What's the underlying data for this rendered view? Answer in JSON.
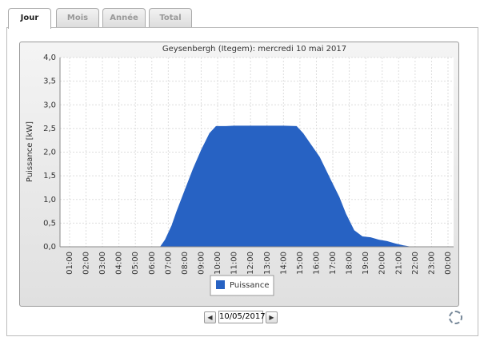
{
  "tabs": [
    "Jour",
    "Mois",
    "Année",
    "Total"
  ],
  "date": "10/05/2017",
  "chart_data": {
    "type": "area",
    "title": "Geysenbergh (Itegem): mercredi 10 mai 2017",
    "y_label": "Puissance [kW]",
    "x": [
      6.5,
      6.8,
      7.2,
      7.5,
      8.0,
      8.5,
      9.0,
      9.5,
      9.9,
      10.5,
      11,
      12,
      13,
      14,
      14.8,
      15.2,
      15.7,
      16.2,
      16.9,
      17.4,
      17.8,
      18.3,
      18.8,
      19.3,
      19.8,
      20.3,
      20.8,
      21.3,
      21.8
    ],
    "series": [
      {
        "name": "Puissance",
        "color": "#2762c3",
        "values": [
          0,
          0.15,
          0.45,
          0.75,
          1.2,
          1.65,
          2.05,
          2.4,
          2.55,
          2.55,
          2.56,
          2.56,
          2.56,
          2.56,
          2.55,
          2.4,
          2.15,
          1.9,
          1.4,
          1.05,
          0.7,
          0.35,
          0.22,
          0.2,
          0.15,
          0.12,
          0.07,
          0.03,
          0
        ]
      }
    ],
    "xlim": [
      0.42,
      24.34
    ],
    "xticks": [
      {
        "value": 1,
        "label": "01:00"
      },
      {
        "value": 2,
        "label": "02:00"
      },
      {
        "value": 3,
        "label": "03:00"
      },
      {
        "value": 4,
        "label": "04:00"
      },
      {
        "value": 5,
        "label": "05:00"
      },
      {
        "value": 6,
        "label": "06:00"
      },
      {
        "value": 7,
        "label": "07:00"
      },
      {
        "value": 8,
        "label": "08:00"
      },
      {
        "value": 9,
        "label": "09:00"
      },
      {
        "value": 10,
        "label": "10:00"
      },
      {
        "value": 11,
        "label": "11:00"
      },
      {
        "value": 12,
        "label": "12:00"
      },
      {
        "value": 13,
        "label": "13:00"
      },
      {
        "value": 14,
        "label": "14:00"
      },
      {
        "value": 15,
        "label": "15:00"
      },
      {
        "value": 16,
        "label": "16:00"
      },
      {
        "value": 17,
        "label": "17:00"
      },
      {
        "value": 18,
        "label": "18:00"
      },
      {
        "value": 19,
        "label": "19:00"
      },
      {
        "value": 20,
        "label": "20:00"
      },
      {
        "value": 21,
        "label": "21:00"
      },
      {
        "value": 22,
        "label": "22:00"
      },
      {
        "value": 23,
        "label": "23:00"
      },
      {
        "value": 24,
        "label": "00:00"
      }
    ],
    "ylim": [
      0,
      4
    ],
    "yticks": [
      {
        "value": 0,
        "label": "0,0"
      },
      {
        "value": 0.5,
        "label": "0,5"
      },
      {
        "value": 1,
        "label": "1,0"
      },
      {
        "value": 1.5,
        "label": "1,5"
      },
      {
        "value": 2,
        "label": "2,0"
      },
      {
        "value": 2.5,
        "label": "2,5"
      },
      {
        "value": 3,
        "label": "3,0"
      },
      {
        "value": 3.5,
        "label": "3,5"
      },
      {
        "value": 4,
        "label": "4,0"
      }
    ],
    "grid": true
  }
}
